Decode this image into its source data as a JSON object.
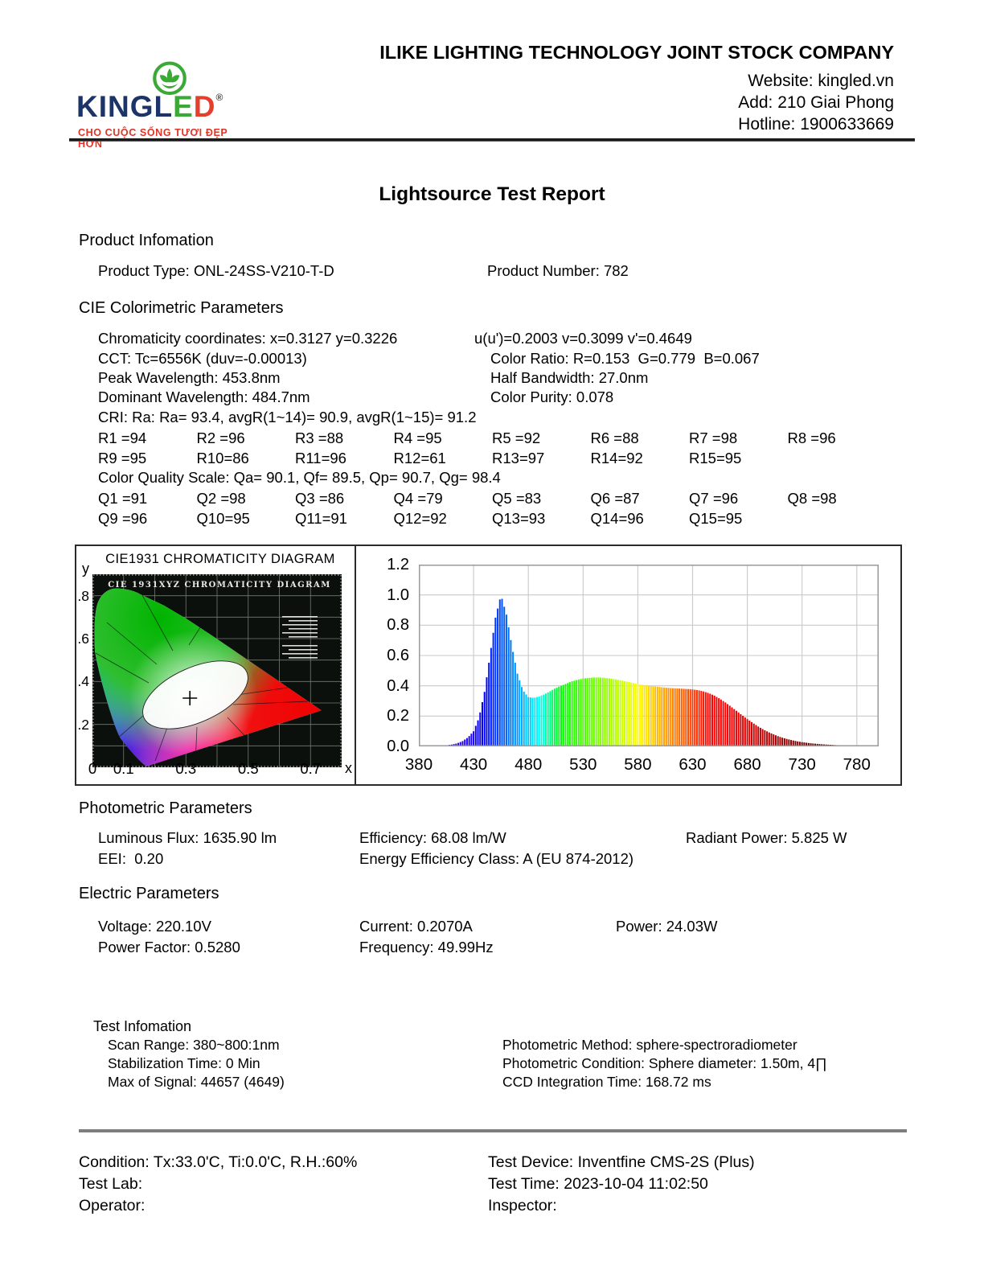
{
  "header": {
    "company": "ILIKE LIGHTING TECHNOLOGY JOINT STOCK COMPANY",
    "website": "Website: kingled.vn",
    "address": "Add: 210 Giai Phong",
    "hotline": "Hotline: 1900633669",
    "logo": {
      "text_navy": "KINGL",
      "text_green": "E",
      "text_red": "D",
      "registered": "®",
      "tagline": "CHO CUỘC SỐNG TƯƠI ĐẸP HƠN",
      "colors": {
        "navy": "#1c3468",
        "green": "#3aa935",
        "red": "#e2402d",
        "tagline_red": "#e03426"
      }
    }
  },
  "title": "Lightsource Test Report",
  "product": {
    "heading": "Product Infomation",
    "type": "Product Type: ONL-24SS-V210-T-D",
    "number": "Product Number: 782"
  },
  "cie": {
    "heading": "CIE Colorimetric Parameters",
    "rows": [
      {
        "left": "Chromaticity coordinates: x=0.3127 y=0.3226",
        "right": "u(u')=0.2003 v=0.3099 v'=0.4649"
      },
      {
        "left": "CCT: Tc=6556K (duv=-0.00013)",
        "right": "Color Ratio: R=0.153  G=0.779  B=0.067"
      },
      {
        "left": "Peak Wavelength: 453.8nm",
        "right": "Half Bandwidth: 27.0nm"
      },
      {
        "left": "Dominant Wavelength: 484.7nm",
        "right": "Color Purity: 0.078"
      }
    ],
    "cri_line": "CRI: Ra: Ra= 93.4, avgR(1~14)= 90.9, avgR(1~15)= 91.2",
    "r_row1": [
      "R1 =94",
      "R2 =96",
      "R3 =88",
      "R4 =95",
      "R5 =92",
      "R6 =88",
      "R7 =98",
      "R8 =96"
    ],
    "r_row2": [
      "R9 =95",
      "R10=86",
      "R11=96",
      "R12=61",
      "R13=97",
      "R14=92",
      "R15=95"
    ],
    "cqs_line": "Color Quality Scale: Qa= 90.1, Qf= 89.5, Qp= 90.7, Qg= 98.4",
    "q_row1": [
      "Q1 =91",
      "Q2 =98",
      "Q3 =86",
      "Q4 =79",
      "Q5 =83",
      "Q6 =87",
      "Q7 =96",
      "Q8 =98"
    ],
    "q_row2": [
      "Q9 =96",
      "Q10=95",
      "Q11=91",
      "Q12=92",
      "Q13=93",
      "Q14=96",
      "Q15=95"
    ]
  },
  "photometric": {
    "heading": "Photometric Parameters",
    "row1": [
      "Luminous Flux: 1635.90 lm",
      "Efficiency: 68.08 lm/W",
      "Radiant Power: 5.825 W"
    ],
    "row2": [
      "EEI:  0.20",
      "Energy Efficiency Class: A (EU 874-2012)"
    ]
  },
  "electric": {
    "heading": "Electric Parameters",
    "row1": [
      "Voltage: 220.10V",
      "Current: 0.2070A",
      "Power: 24.03W"
    ],
    "row2": [
      "Power Factor: 0.5280",
      "Frequency: 49.99Hz"
    ]
  },
  "test_info": {
    "heading": "Test Infomation",
    "left": [
      "Scan Range: 380~800:1nm",
      "Stabilization Time: 0 Min",
      "Max of Signal: 44657 (4649)"
    ],
    "right": [
      "Photometric Method: sphere-spectroradiometer",
      "Photometric Condition: Sphere diameter: 1.50m, 4∏",
      "CCD Integration Time: 168.72 ms"
    ]
  },
  "footer": {
    "left": [
      "Condition: Tx:33.0'C, Ti:0.0'C, R.H.:60%",
      "Test Lab:",
      "Operator:"
    ],
    "right": [
      "Test Device: Inventfine CMS-2S (Plus)",
      "Test Time: 2023-10-04 11:02:50",
      "Inspector:"
    ]
  },
  "chart_data": [
    {
      "id": "cie1931",
      "type": "scatter",
      "title": "CIE1931 CHROMATICITY DIAGRAM",
      "inner_title": "CIE 1931XYZ CHROMATICITY DIAGRAM",
      "xlabel": "x",
      "ylabel": "y",
      "xlim": [
        0,
        0.8
      ],
      "ylim": [
        0,
        0.9
      ],
      "x_ticks": [
        "0",
        "0.1",
        "0.3",
        "0.5",
        "0.7"
      ],
      "x_tick_values": [
        0,
        0.1,
        0.3,
        0.5,
        0.7
      ],
      "y_ticks": [
        ".8",
        ".6",
        ".4",
        ".2"
      ],
      "y_tick_values": [
        0.8,
        0.6,
        0.4,
        0.2
      ],
      "points": [
        {
          "x": 0.3127,
          "y": 0.3226,
          "marker": "cross"
        }
      ]
    },
    {
      "id": "spectral-power-distribution",
      "type": "area",
      "xlim": [
        380,
        800
      ],
      "ylim": [
        0,
        1.2
      ],
      "x_ticks": [
        "380",
        "430",
        "480",
        "530",
        "580",
        "630",
        "680",
        "730",
        "780"
      ],
      "x_tick_values": [
        380,
        430,
        480,
        530,
        580,
        630,
        680,
        730,
        780
      ],
      "y_ticks": [
        "1.2",
        "1.0",
        "0.8",
        "0.6",
        "0.4",
        "0.2",
        "0.0"
      ],
      "y_tick_values": [
        1.2,
        1.0,
        0.8,
        0.6,
        0.4,
        0.2,
        0.0
      ],
      "grid": true,
      "wavelength_start": 380,
      "wavelength_step": 5,
      "values": [
        0,
        0,
        0.001,
        0.002,
        0.004,
        0.007,
        0.012,
        0.02,
        0.035,
        0.06,
        0.1,
        0.19,
        0.36,
        0.6,
        0.85,
        1.0,
        0.87,
        0.66,
        0.48,
        0.37,
        0.325,
        0.32,
        0.33,
        0.345,
        0.365,
        0.385,
        0.4,
        0.415,
        0.43,
        0.44,
        0.448,
        0.452,
        0.455,
        0.455,
        0.452,
        0.448,
        0.442,
        0.435,
        0.428,
        0.42,
        0.412,
        0.405,
        0.4,
        0.396,
        0.392,
        0.388,
        0.385,
        0.383,
        0.381,
        0.379,
        0.376,
        0.371,
        0.363,
        0.351,
        0.335,
        0.314,
        0.29,
        0.263,
        0.235,
        0.207,
        0.18,
        0.155,
        0.131,
        0.11,
        0.092,
        0.076,
        0.062,
        0.051,
        0.042,
        0.034,
        0.028,
        0.023,
        0.019,
        0.016,
        0.013,
        0.011,
        0.009,
        0.007,
        0.005,
        0.003,
        0.002
      ]
    }
  ]
}
